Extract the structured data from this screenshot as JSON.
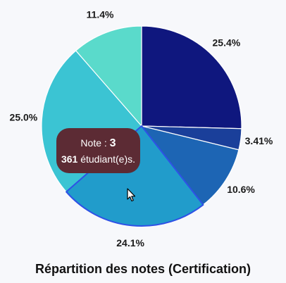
{
  "chart_data": {
    "type": "pie",
    "title": "Répartition des notes (Certification)",
    "slices": [
      {
        "label": "25.4%",
        "value": 25.4,
        "color": "#0f177e"
      },
      {
        "label": "3.41%",
        "value": 3.41,
        "color": "#1a3f9a"
      },
      {
        "label": "10.6%",
        "value": 10.6,
        "color": "#1d65b4"
      },
      {
        "label": "24.1%",
        "value": 24.1,
        "color": "#219ccb",
        "highlighted": true
      },
      {
        "label": "25.0%",
        "value": 25.0,
        "color": "#3bc4d3"
      },
      {
        "label": "11.4%",
        "value": 11.4,
        "color": "#5adacb"
      }
    ],
    "highlight_color": "#2e51e6"
  },
  "tooltip": {
    "note_prefix": "Note : ",
    "note_value": "3",
    "count": "361",
    "count_suffix": " étudiant(e)s."
  }
}
